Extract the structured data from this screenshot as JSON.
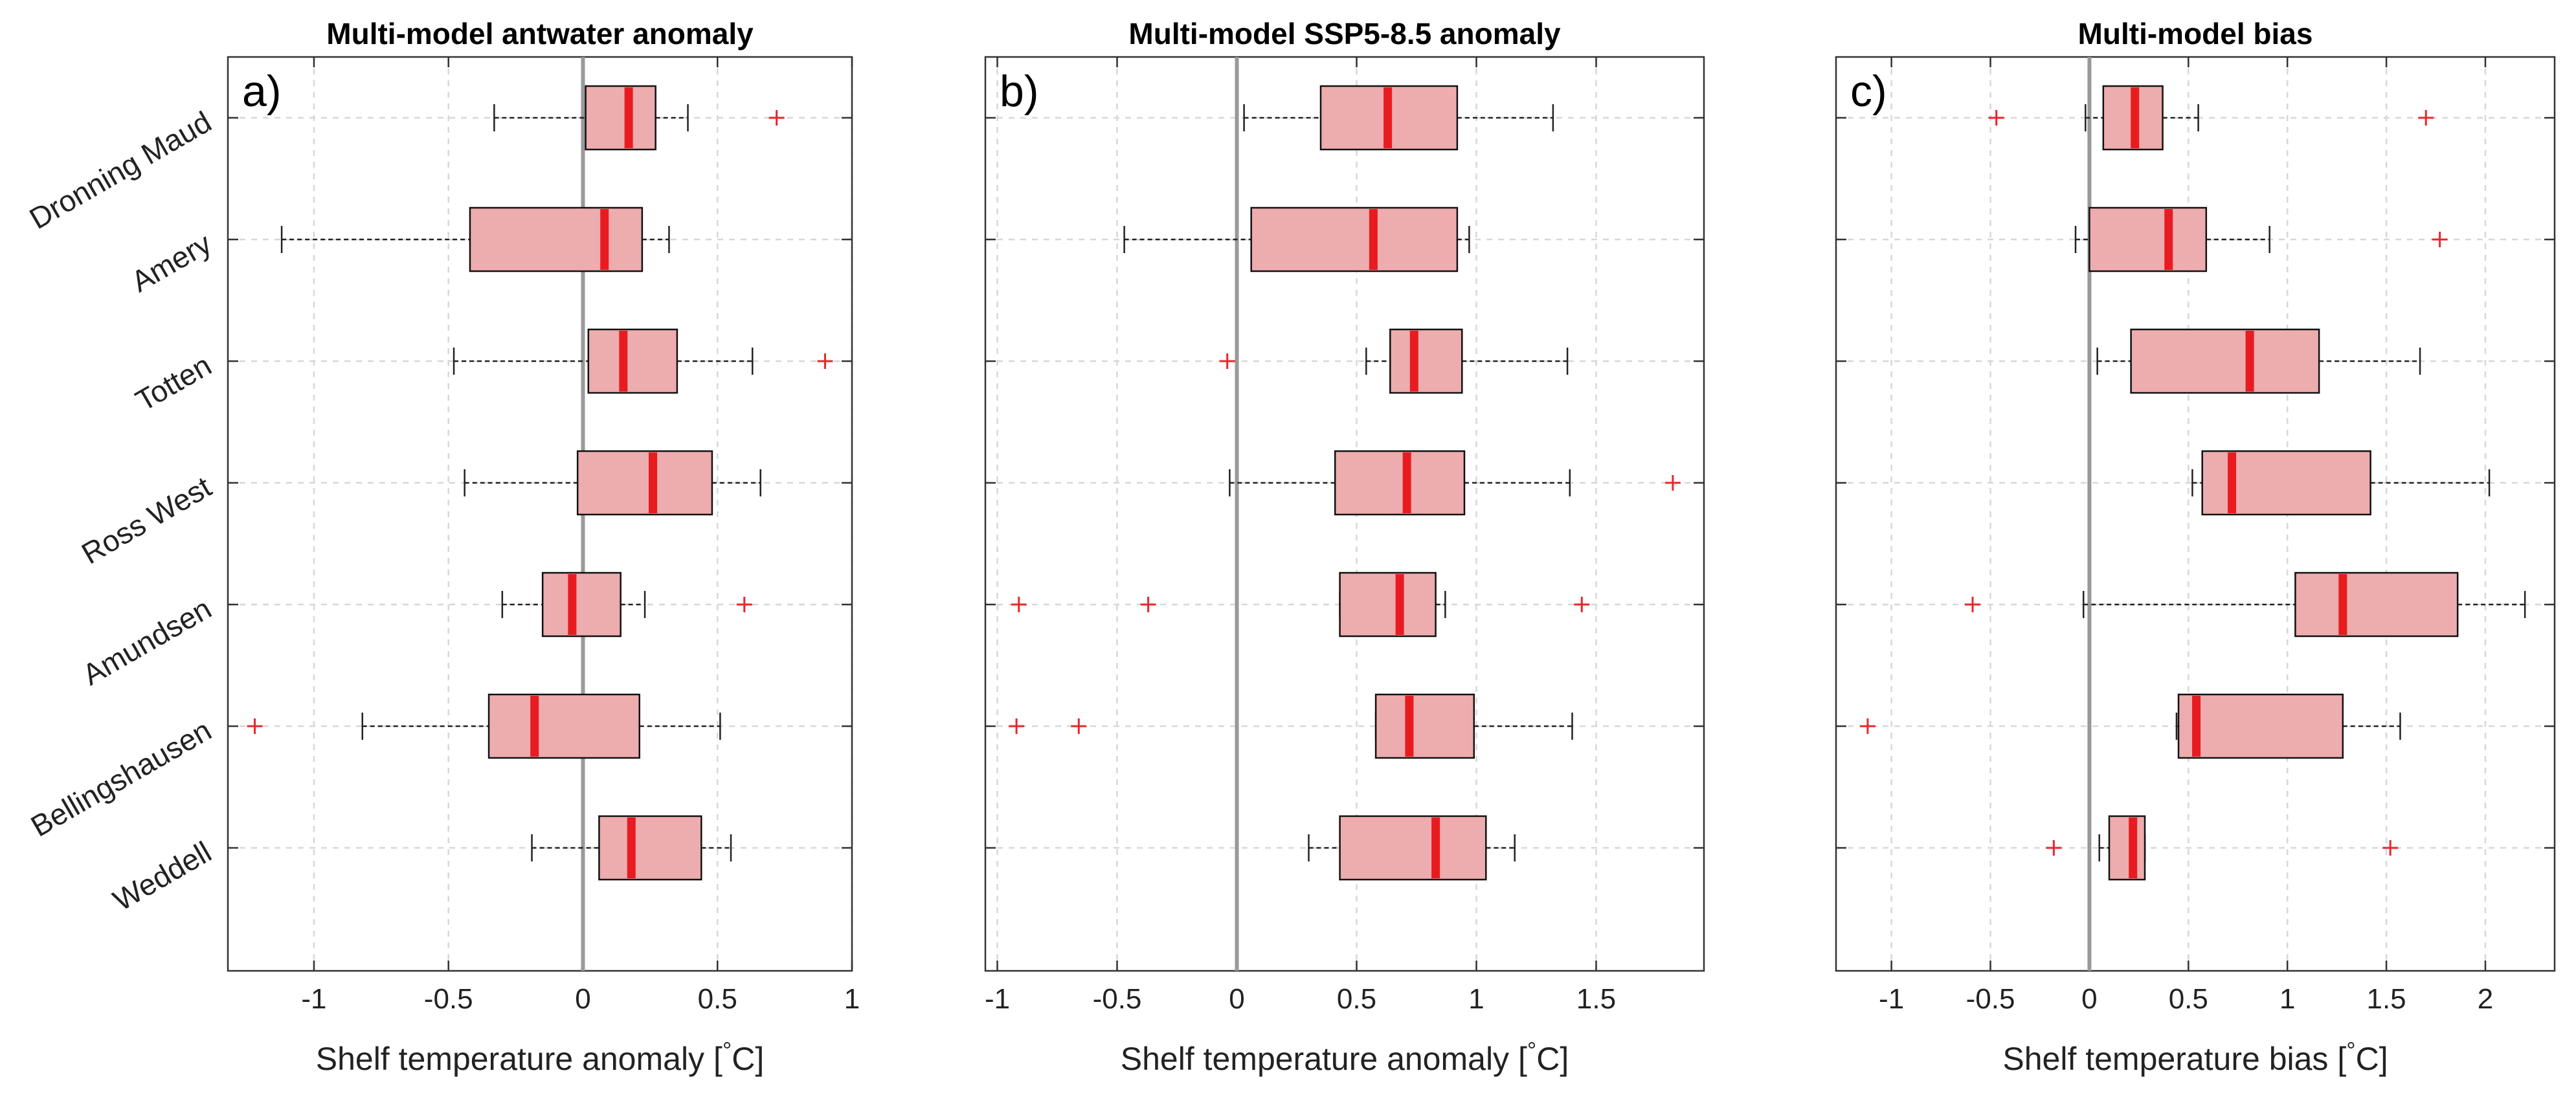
{
  "chart_data": [
    {
      "type": "boxplot",
      "panel_label": "a)",
      "title": "Multi-model antwater anomaly",
      "xlabel": "Shelf temperature anomaly [",
      "xlabel_degree": "°",
      "xlabel_unit": "C]",
      "xlim": [
        -1.32,
        1.0
      ],
      "xticks": [
        -1,
        -0.5,
        0,
        0.5,
        1
      ],
      "xtick_labels": [
        "-1",
        "-0.5",
        "0",
        "0.5",
        "1"
      ],
      "categories": [
        "Dronning Maud",
        "Amery",
        "Totten",
        "Ross West",
        "Amundsen",
        "Bellingshausen",
        "Weddell"
      ],
      "boxes": [
        {
          "whisker_low": -0.33,
          "q1": 0.01,
          "median": 0.17,
          "q3": 0.27,
          "whisker_high": 0.39,
          "outliers": [
            0.72
          ]
        },
        {
          "whisker_low": -1.12,
          "q1": -0.42,
          "median": 0.08,
          "q3": 0.22,
          "whisker_high": 0.32,
          "outliers": []
        },
        {
          "whisker_low": -0.48,
          "q1": 0.02,
          "median": 0.15,
          "q3": 0.35,
          "whisker_high": 0.63,
          "outliers": [
            0.9
          ]
        },
        {
          "whisker_low": -0.44,
          "q1": -0.02,
          "median": 0.26,
          "q3": 0.48,
          "whisker_high": 0.66,
          "outliers": []
        },
        {
          "whisker_low": -0.3,
          "q1": -0.15,
          "median": -0.04,
          "q3": 0.14,
          "whisker_high": 0.23,
          "outliers": [
            0.6
          ]
        },
        {
          "whisker_low": -0.82,
          "q1": -0.35,
          "median": -0.18,
          "q3": 0.21,
          "whisker_high": 0.51,
          "outliers": [
            -1.22
          ]
        },
        {
          "whisker_low": -0.19,
          "q1": 0.06,
          "median": 0.18,
          "q3": 0.44,
          "whisker_high": 0.55,
          "outliers": []
        }
      ]
    },
    {
      "type": "boxplot",
      "panel_label": "b)",
      "title": "Multi-model SSP5-8.5 anomaly",
      "xlabel": "Shelf temperature anomaly [",
      "xlabel_degree": "°",
      "xlabel_unit": "C]",
      "xlim": [
        -1.05,
        1.95
      ],
      "xticks": [
        -1,
        -0.5,
        0,
        0.5,
        1,
        1.5
      ],
      "xtick_labels": [
        "-1",
        "-0.5",
        "0",
        "0.5",
        "1",
        "1.5"
      ],
      "categories": [
        "Dronning Maud",
        "Amery",
        "Totten",
        "Ross West",
        "Amundsen",
        "Bellingshausen",
        "Weddell"
      ],
      "boxes": [
        {
          "whisker_low": 0.03,
          "q1": 0.35,
          "median": 0.63,
          "q3": 0.92,
          "whisker_high": 1.32,
          "outliers": []
        },
        {
          "whisker_low": -0.47,
          "q1": 0.06,
          "median": 0.57,
          "q3": 0.92,
          "whisker_high": 0.97,
          "outliers": []
        },
        {
          "whisker_low": 0.54,
          "q1": 0.64,
          "median": 0.74,
          "q3": 0.94,
          "whisker_high": 1.38,
          "outliers": [
            -0.04
          ]
        },
        {
          "whisker_low": -0.03,
          "q1": 0.41,
          "median": 0.71,
          "q3": 0.95,
          "whisker_high": 1.39,
          "outliers": [
            1.82
          ]
        },
        {
          "whisker_low": 0.43,
          "q1": 0.43,
          "median": 0.68,
          "q3": 0.83,
          "whisker_high": 0.87,
          "outliers": [
            -0.91,
            -0.37,
            1.44
          ]
        },
        {
          "whisker_low": 0.58,
          "q1": 0.58,
          "median": 0.72,
          "q3": 0.99,
          "whisker_high": 1.4,
          "outliers": [
            -0.92,
            -0.66
          ]
        },
        {
          "whisker_low": 0.3,
          "q1": 0.43,
          "median": 0.83,
          "q3": 1.04,
          "whisker_high": 1.16,
          "outliers": []
        }
      ]
    },
    {
      "type": "boxplot",
      "panel_label": "c)",
      "title": "Multi-model bias",
      "xlabel": "Shelf temperature bias [",
      "xlabel_degree": "°",
      "xlabel_unit": "C]",
      "xlim": [
        -1.28,
        2.35
      ],
      "xticks": [
        -1,
        -0.5,
        0,
        0.5,
        1,
        1.5,
        2
      ],
      "xtick_labels": [
        "-1",
        "-0.5",
        "0",
        "0.5",
        "1",
        "1.5",
        "2"
      ],
      "categories": [
        "Dronning Maud",
        "Amery",
        "Totten",
        "Ross West",
        "Amundsen",
        "Bellingshausen",
        "Weddell"
      ],
      "boxes": [
        {
          "whisker_low": -0.02,
          "q1": 0.07,
          "median": 0.23,
          "q3": 0.37,
          "whisker_high": 0.55,
          "outliers": [
            -0.47,
            1.7
          ]
        },
        {
          "whisker_low": -0.07,
          "q1": 0.0,
          "median": 0.4,
          "q3": 0.59,
          "whisker_high": 0.91,
          "outliers": [
            1.77
          ]
        },
        {
          "whisker_low": 0.04,
          "q1": 0.21,
          "median": 0.81,
          "q3": 1.16,
          "whisker_high": 1.67,
          "outliers": []
        },
        {
          "whisker_low": 0.52,
          "q1": 0.57,
          "median": 0.72,
          "q3": 1.42,
          "whisker_high": 2.02,
          "outliers": []
        },
        {
          "whisker_low": -0.03,
          "q1": 1.04,
          "median": 1.28,
          "q3": 1.86,
          "whisker_high": 2.2,
          "outliers": [
            -0.59
          ]
        },
        {
          "whisker_low": 0.44,
          "q1": 0.45,
          "median": 0.54,
          "q3": 1.28,
          "whisker_high": 1.57,
          "outliers": [
            -1.12
          ]
        },
        {
          "whisker_low": 0.05,
          "q1": 0.1,
          "median": 0.22,
          "q3": 0.28,
          "whisker_high": 0.28,
          "outliers": [
            -0.18,
            1.52
          ]
        }
      ]
    }
  ]
}
